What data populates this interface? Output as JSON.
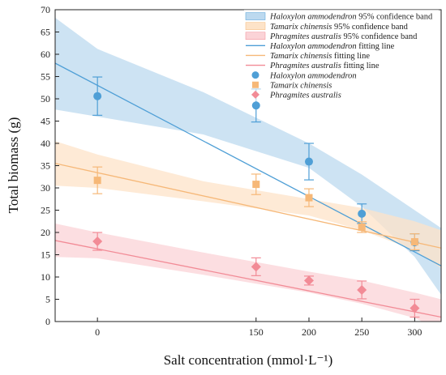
{
  "chart_data": {
    "type": "scatter",
    "xlabel": "Salt concentration (mmol·L⁻¹)",
    "ylabel": "Total biomass (g)",
    "xlim": [
      -40,
      325
    ],
    "ylim": [
      0,
      70
    ],
    "x_ticks": [
      0,
      150,
      200,
      250,
      300
    ],
    "x_tick_labels": [
      "0",
      "150",
      "200",
      "250",
      "300"
    ],
    "y_ticks": [
      0,
      5,
      10,
      15,
      20,
      25,
      30,
      35,
      40,
      45,
      50,
      55,
      60,
      65,
      70
    ],
    "grid": false,
    "legend_position": "top-right",
    "species": [
      {
        "name": "Haloxylon ammodendron",
        "color": "#4f9fd6",
        "band_color": "#bcd9ef",
        "marker": "circle",
        "band_label_suffix": " 95% confidence band",
        "line_label_suffix": " fitting line",
        "points": [
          {
            "x": 0,
            "y": 50.6,
            "err": 4.3
          },
          {
            "x": 150,
            "y": 48.5,
            "err": 3.7
          },
          {
            "x": 200,
            "y": 35.9,
            "err": 4.1
          },
          {
            "x": 250,
            "y": 24.2,
            "err": 2.2
          },
          {
            "x": 300,
            "y": 17.8,
            "err": 1.9
          }
        ],
        "fit_line": [
          [
            -40,
            58.0
          ],
          [
            325,
            12.5
          ]
        ],
        "band_upper": [
          [
            -40,
            68.2
          ],
          [
            0,
            61.2
          ],
          [
            100,
            51.5
          ],
          [
            200,
            40.0
          ],
          [
            250,
            33.0
          ],
          [
            300,
            25.0
          ],
          [
            325,
            21.0
          ]
        ],
        "band_lower": [
          [
            -40,
            47.6
          ],
          [
            0,
            46.0
          ],
          [
            100,
            42.0
          ],
          [
            200,
            34.5
          ],
          [
            250,
            25.8
          ],
          [
            300,
            14.5
          ],
          [
            325,
            6.0
          ]
        ]
      },
      {
        "name": "Tamarix chinensis",
        "color": "#f6b878",
        "band_color": "#fde3c8",
        "marker": "square",
        "band_label_suffix": " 95% confidence band",
        "line_label_suffix": " fitting line",
        "points": [
          {
            "x": 0,
            "y": 31.7,
            "err": 3.0
          },
          {
            "x": 150,
            "y": 30.8,
            "err": 2.3
          },
          {
            "x": 200,
            "y": 27.8,
            "err": 2.0
          },
          {
            "x": 250,
            "y": 21.2,
            "err": 1.2
          },
          {
            "x": 300,
            "y": 17.9,
            "err": 1.8
          }
        ],
        "fit_line": [
          [
            -40,
            35.5
          ],
          [
            325,
            16.5
          ]
        ],
        "band_upper": [
          [
            -40,
            40.5
          ],
          [
            0,
            37.5
          ],
          [
            100,
            31.5
          ],
          [
            200,
            27.5
          ],
          [
            250,
            25.5
          ],
          [
            300,
            22.5
          ],
          [
            325,
            20.5
          ]
        ],
        "band_lower": [
          [
            -40,
            30.5
          ],
          [
            0,
            30.0
          ],
          [
            100,
            27.0
          ],
          [
            200,
            23.8
          ],
          [
            250,
            20.5
          ],
          [
            300,
            16.0
          ],
          [
            325,
            12.0
          ]
        ]
      },
      {
        "name": "Phragmites australis",
        "color": "#f28b96",
        "band_color": "#fbd3d7",
        "marker": "diamond",
        "band_label_suffix": " 95% confidence band",
        "line_label_suffix": " fitting line",
        "points": [
          {
            "x": 0,
            "y": 18.0,
            "err": 2.0
          },
          {
            "x": 150,
            "y": 12.3,
            "err": 2.0
          },
          {
            "x": 200,
            "y": 9.2,
            "err": 1.0
          },
          {
            "x": 250,
            "y": 7.1,
            "err": 2.0
          },
          {
            "x": 300,
            "y": 3.0,
            "err": 2.0
          }
        ],
        "fit_line": [
          [
            -40,
            18.2
          ],
          [
            325,
            1.0
          ]
        ],
        "band_upper": [
          [
            -40,
            22.0
          ],
          [
            0,
            20.0
          ],
          [
            100,
            15.5
          ],
          [
            200,
            11.2
          ],
          [
            250,
            9.2
          ],
          [
            300,
            6.5
          ],
          [
            325,
            5.0
          ]
        ],
        "band_lower": [
          [
            -40,
            14.5
          ],
          [
            0,
            14.2
          ],
          [
            100,
            10.5
          ],
          [
            200,
            6.5
          ],
          [
            250,
            4.0
          ],
          [
            300,
            0.8
          ],
          [
            325,
            -2.0
          ]
        ]
      }
    ]
  }
}
